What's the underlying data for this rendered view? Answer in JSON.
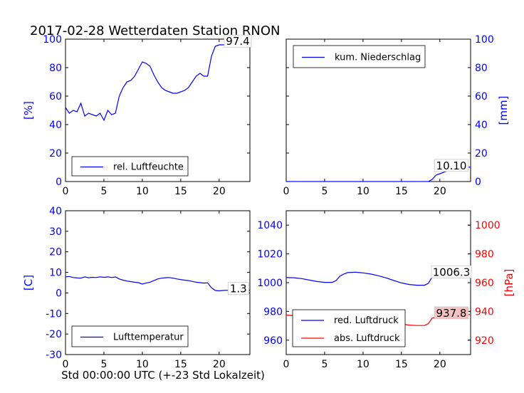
{
  "title": "2017-02-28 Wetterdaten Station RNON",
  "x_caption": "Std 00:00:00 UTC (+-23 Std Lokalzeit)",
  "colors": {
    "primary": "#0000ff",
    "secondary": "#ff0000",
    "box_red": "#f4c2c2"
  },
  "chart_data": [
    {
      "type": "line",
      "xlim": [
        0,
        24
      ],
      "ylim": [
        0,
        100
      ],
      "xticks": [
        0,
        5,
        10,
        15,
        20
      ],
      "yticks": [
        0,
        20,
        40,
        60,
        80,
        100
      ],
      "ylabel": "[%]",
      "legend_placement": "lower-left",
      "series": [
        {
          "name": "rel. Luftfeuchte",
          "x": [
            0,
            0.5,
            1,
            1.5,
            2,
            2.5,
            3,
            3.5,
            4,
            4.5,
            5,
            5.5,
            6,
            6.5,
            7,
            7.5,
            8,
            8.5,
            9,
            9.5,
            10,
            10.5,
            11,
            11.5,
            12,
            12.5,
            13,
            13.5,
            14,
            14.5,
            15,
            15.5,
            16,
            16.5,
            17,
            17.5,
            18,
            18.5,
            19,
            19.5,
            20,
            20.5,
            21,
            21.5,
            22,
            22.5,
            23,
            24
          ],
          "y": [
            52,
            48,
            50,
            49,
            55,
            46,
            48,
            47,
            46,
            48,
            43,
            50,
            47,
            48,
            60,
            66,
            70,
            71,
            74,
            79,
            84,
            83,
            81,
            75,
            70,
            66,
            64,
            63,
            62,
            62,
            63,
            64,
            66,
            70,
            74,
            76,
            74,
            74,
            88,
            95,
            96,
            96,
            96,
            96,
            97,
            97,
            97.4,
            97
          ]
        }
      ],
      "last_value_label": "97.4",
      "last_value_x": 23,
      "last_value_y": 97.4
    },
    {
      "type": "line",
      "xlim": [
        0,
        24
      ],
      "ylim": [
        0,
        100
      ],
      "xticks": [
        0,
        5,
        10,
        15,
        20
      ],
      "yticks": [
        0,
        20,
        40,
        60,
        80,
        100
      ],
      "yaxis_side": "right",
      "ylabel": "[mm]",
      "legend_placement": "upper-left",
      "series": [
        {
          "name": "kum. Niederschlag",
          "x": [
            0,
            18.5,
            19,
            19.5,
            20,
            21,
            22,
            23,
            24
          ],
          "y": [
            0,
            0,
            1.5,
            4.5,
            5.5,
            7.5,
            9,
            10.1,
            10.1
          ]
        }
      ],
      "last_value_label": "10.10",
      "last_value_x": 21.5,
      "last_value_y": 10.1
    },
    {
      "type": "line",
      "xlim": [
        0,
        24
      ],
      "ylim": [
        -30,
        40
      ],
      "xticks": [
        0,
        5,
        10,
        15,
        20
      ],
      "yticks": [
        -30,
        -20,
        -10,
        0,
        10,
        20,
        30,
        40
      ],
      "ylabel": "[C]",
      "legend_placement": "lower-left",
      "series": [
        {
          "name": "Lufttemperatur",
          "x": [
            0,
            0.5,
            1,
            1.5,
            2,
            2.5,
            3,
            3.5,
            4,
            4.5,
            5,
            5.5,
            6,
            6.5,
            7,
            7.5,
            8,
            8.5,
            9,
            9.5,
            10,
            10.5,
            11,
            11.5,
            12,
            12.5,
            13,
            13.5,
            14,
            14.5,
            15,
            15.5,
            16,
            16.5,
            17,
            17.5,
            18,
            18.5,
            19,
            19.5,
            20,
            20.5,
            21,
            21.5,
            22,
            22.5,
            23,
            24
          ],
          "y": [
            7.8,
            8,
            7.5,
            7.3,
            7.2,
            7.8,
            7.4,
            7.6,
            7.5,
            7.8,
            7.6,
            7.8,
            7.5,
            7.8,
            6.8,
            6.2,
            5.8,
            5.5,
            5.2,
            5,
            4.3,
            4.8,
            5.2,
            6,
            6.8,
            7.2,
            7.4,
            7.5,
            7.2,
            6.8,
            6.5,
            6.2,
            6,
            5.6,
            5.2,
            5,
            4.8,
            4.9,
            2.5,
            1.2,
            1,
            1.2,
            1.3,
            1.2,
            1.1,
            1.1,
            1.3,
            1.3
          ]
        }
      ],
      "last_value_label": "1.3",
      "last_value_x": 22.5,
      "last_value_y": 1.3
    },
    {
      "type": "line",
      "xlim": [
        0,
        24
      ],
      "ylim": [
        950,
        1050
      ],
      "xticks": [
        0,
        5,
        10,
        15,
        20
      ],
      "yticks": [
        960,
        980,
        1000,
        1020,
        1040
      ],
      "y2lim": [
        910,
        1010
      ],
      "y2ticks": [
        920,
        940,
        960,
        980,
        1000
      ],
      "y2label": "[hPa]",
      "legend_placement": "lower-left",
      "series": [
        {
          "name": "red. Luftdruck",
          "axis": "left",
          "x": [
            0,
            1,
            2,
            3,
            4,
            5,
            6,
            6.5,
            7,
            7.5,
            8,
            9,
            10,
            11,
            12,
            13,
            14,
            15,
            16,
            17,
            18,
            18.5,
            19,
            20,
            21,
            22,
            23,
            24
          ],
          "y": [
            1003.5,
            1003.4,
            1002.8,
            1001.8,
            1000.8,
            1000.2,
            1000.2,
            1001.5,
            1004.5,
            1006,
            1007,
            1007.3,
            1006.8,
            1006,
            1004.8,
            1003.3,
            1001.5,
            999.8,
            998.7,
            998.2,
            998.2,
            999.5,
            1004,
            1005.3,
            1005.8,
            1006,
            1006.3,
            1006.3
          ]
        },
        {
          "name": "abs. Luftdruck",
          "axis": "right",
          "x": [
            0,
            1,
            2,
            3,
            4,
            5,
            6,
            6.5,
            7,
            7.5,
            8,
            9,
            10,
            11,
            12,
            13,
            14,
            15,
            16,
            17,
            18,
            18.5,
            19,
            20,
            21,
            22,
            23,
            24
          ],
          "y": [
            937.5,
            937,
            936,
            934.8,
            933.8,
            933.2,
            933.5,
            935,
            938.2,
            939.3,
            939.8,
            939.6,
            938.8,
            937.5,
            936.2,
            934.5,
            932.8,
            931.3,
            930.5,
            930.2,
            930.2,
            931.5,
            935.3,
            936.8,
            937.3,
            937.6,
            937.8,
            937.8
          ]
        }
      ],
      "last_value_labels": [
        {
          "text": "1006.3",
          "axis": "left",
          "x": 21.5,
          "y": 1006.3
        },
        {
          "text": "937.8",
          "axis": "right",
          "x": 21.5,
          "y": 937.8
        }
      ]
    }
  ]
}
